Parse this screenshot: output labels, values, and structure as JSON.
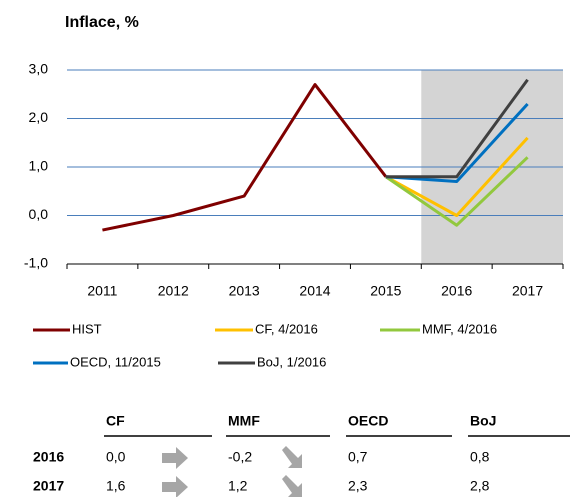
{
  "chart_data": {
    "type": "line",
    "title": "Inflace, %",
    "categories": [
      "2011",
      "2012",
      "2013",
      "2014",
      "2015",
      "2016",
      "2017"
    ],
    "series": [
      {
        "name": "HIST",
        "color": "#7f0000",
        "values": [
          -0.3,
          0.0,
          0.4,
          2.7,
          0.8,
          null,
          null
        ]
      },
      {
        "name": "CF, 4/2016",
        "color": "#ffc000",
        "values": [
          null,
          null,
          null,
          null,
          0.8,
          0.0,
          1.6
        ]
      },
      {
        "name": "MMF, 4/2016",
        "color": "#92c83e",
        "values": [
          null,
          null,
          null,
          null,
          0.8,
          -0.2,
          1.2
        ]
      },
      {
        "name": "OECD, 11/2015",
        "color": "#0070c0",
        "values": [
          null,
          null,
          null,
          null,
          0.8,
          0.7,
          2.3
        ]
      },
      {
        "name": "BoJ, 1/2016",
        "color": "#404040",
        "values": [
          null,
          null,
          null,
          null,
          0.8,
          0.8,
          2.8
        ]
      }
    ],
    "ylim": [
      -1,
      3
    ],
    "yticks": [
      {
        "value": -1,
        "label": "-1,0"
      },
      {
        "value": 0,
        "label": "0,0"
      },
      {
        "value": 1,
        "label": "1,0"
      },
      {
        "value": 2,
        "label": "2,0"
      },
      {
        "value": 3,
        "label": "3,0"
      }
    ],
    "grid": true
  },
  "table": {
    "headers": [
      "CF",
      "MMF",
      "OECD",
      "BoJ"
    ],
    "rows": [
      [
        "2016",
        "0,0",
        "-0,2",
        "0,7",
        "0,8"
      ],
      [
        "2017",
        "1,6",
        "1,2",
        "2,3",
        "2,8"
      ]
    ]
  }
}
